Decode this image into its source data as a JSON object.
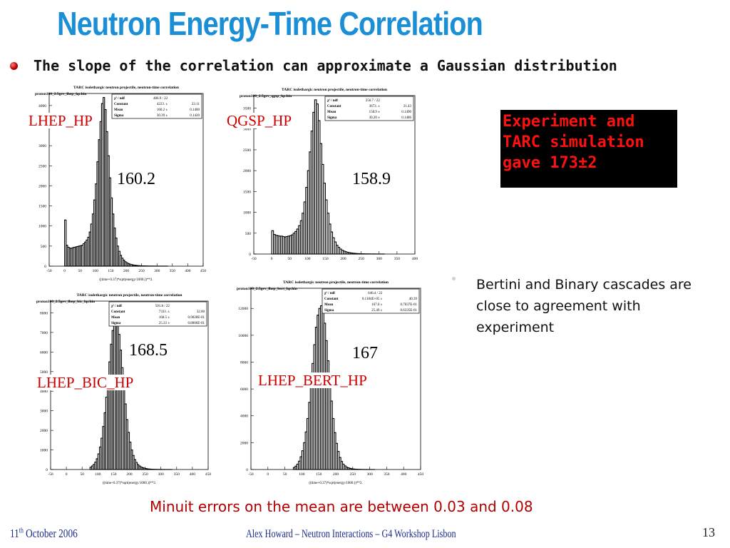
{
  "slide": {
    "title": "Neutron Energy-Time Correlation",
    "subtitle": "The slope of the correlation can approximate a Gaussian distribution",
    "experiment_box": [
      "Experiment and",
      "TARC simulation",
      "gave 173±2"
    ],
    "bertini_note": "Bertini and Binary cascades are close to agreement with experiment",
    "minuit_note": "Minuit errors on the mean are between 0.03 and 0.08",
    "date_day": "11",
    "date_suffix": "th",
    "date_rest": " October 2006",
    "footer": "Alex Howard – Neutron Interactions – G4 Workshop Lisbon",
    "page_number": "13"
  },
  "colors": {
    "title": "#1a8fd6",
    "model_label": "#cc0000",
    "experiment_text": "#ff1010",
    "note_red": "#b00000",
    "footer": "#1a2a8f"
  },
  "plots": [
    {
      "id": "lhep-hp",
      "model_label": "LHEP_HP",
      "big_label": "160.2",
      "plot_title": "TARC isolethargic neutron projectile, neutron-time correlation",
      "hist_name": "proton100_2.5gev_lhep_hp.hin",
      "stats": [
        [
          "χ² / ndf",
          "486.9  /   22",
          ""
        ],
        [
          "Constant",
          "4223.  ±",
          "23.11"
        ],
        [
          "Mean",
          "160.2  ±",
          "0.1400"
        ],
        [
          "Sigma",
          "30.39  ±",
          "0.1420"
        ]
      ],
      "xaxis_label": "((time+0.37)*sqrt(energy/1000.))**2."
    },
    {
      "id": "qgsp-hp",
      "model_label": "QGSP_HP",
      "big_label": "158.9",
      "plot_title": "TARC isolethargic neutron projectile, neutron-time correlation",
      "hist_name": "proton100_2.5gev_qgsp_hp.hin",
      "stats": [
        [
          "χ² / ndf",
          "256.7  /   22",
          ""
        ],
        [
          "Constant",
          "3673.  ±",
          "21.43"
        ],
        [
          "Mean",
          "158.9  ±",
          "0.1490"
        ],
        [
          "Sigma",
          "30.20  ±",
          "0.1486"
        ]
      ],
      "xaxis_label": ""
    },
    {
      "id": "lhep-bic-hp",
      "model_label": "LHEP_BIC_HP",
      "big_label": "168.5",
      "plot_title": "TARC isolethargic neutron projectile, neutron-time correlation",
      "hist_name": "proton100_2.5gev_lhep_bic_hp.hin",
      "stats": [
        [
          "χ² / ndf",
          "501.8  /   22",
          ""
        ],
        [
          "Constant",
          "7333.  ±",
          "32.00"
        ],
        [
          "Mean",
          "168.5  ±",
          "0.9028E-01"
        ],
        [
          "Sigma",
          "25.33  ±",
          "0.8006E-01"
        ]
      ],
      "xaxis_label": "((time+0.37)*sqrt(energy/1000.))**2."
    },
    {
      "id": "lhep-bert-hp",
      "model_label": "LHEP_BERT_HP",
      "big_label": "167",
      "plot_title": "TARC isolethargic neutron projectile, neutron-time correlation",
      "hist_name": "proton100_2.5gev_lhep_bert_hp.hin",
      "stats": [
        [
          "χ² / ndf",
          "646.4  /   22",
          ""
        ],
        [
          "Constant",
          "0.1184E+05 ±",
          "40.39"
        ],
        [
          "Mean",
          "167.0  ±",
          "0.7037E-01"
        ],
        [
          "Sigma",
          "25.49  ±",
          "0.6335E-01"
        ]
      ],
      "xaxis_label": "((time+0.37)*sqrt(energy/1000.))**2."
    }
  ],
  "chart_data": [
    {
      "type": "bar",
      "title": "TARC isolethargic neutron projectile, neutron-time correlation",
      "xlabel": "((time+0.37)*sqrt(energy/1000.))**2.",
      "xlim": [
        -50,
        450
      ],
      "ylim": [
        0,
        4300
      ],
      "xticks": [
        -50,
        0,
        50,
        100,
        150,
        200,
        250,
        300,
        350,
        400,
        450
      ],
      "yticks": [
        0,
        500,
        1000,
        1500,
        2000,
        2500,
        3000,
        3500,
        4000
      ],
      "x": [
        0,
        5,
        10,
        15,
        20,
        25,
        30,
        35,
        40,
        45,
        50,
        55,
        60,
        65,
        70,
        75,
        80,
        85,
        90,
        95,
        100,
        105,
        110,
        115,
        120,
        125,
        130,
        135,
        140,
        145,
        150,
        155,
        160,
        165,
        170,
        175,
        180,
        185,
        190,
        195,
        200,
        205,
        210,
        215,
        220,
        225,
        230,
        235,
        240,
        245,
        250,
        255,
        260,
        265,
        270,
        275,
        280,
        285,
        290,
        295,
        300,
        305,
        310,
        315,
        320,
        325,
        330,
        335,
        340,
        345,
        350,
        355,
        360,
        365,
        370,
        375,
        380,
        385,
        390,
        395,
        400,
        405,
        410,
        415,
        420,
        425,
        430,
        435,
        440,
        445
      ],
      "values": [
        1150,
        520,
        470,
        450,
        445,
        460,
        470,
        480,
        490,
        500,
        510,
        520,
        560,
        600,
        650,
        720,
        850,
        1050,
        1300,
        1650,
        2050,
        2600,
        3150,
        3600,
        4050,
        4200,
        3900,
        3350,
        2750,
        2200,
        1700,
        1300,
        950,
        700,
        500,
        370,
        270,
        200,
        150,
        110,
        85,
        65,
        50,
        40,
        30,
        25,
        20,
        15,
        12,
        10,
        8,
        6,
        5,
        4,
        3,
        3,
        2,
        2,
        2,
        1,
        1,
        1,
        1,
        1,
        1,
        1,
        1,
        0,
        0,
        0,
        0,
        0,
        0,
        0,
        0,
        0,
        0,
        0,
        0,
        0,
        0,
        0,
        0,
        0,
        0,
        0,
        0,
        0,
        0,
        0
      ]
    },
    {
      "type": "bar",
      "title": "TARC isolethargic neutron projectile, neutron-time correlation",
      "xlabel": "",
      "xlim": [
        -50,
        400
      ],
      "ylim": [
        0,
        3800
      ],
      "xticks": [
        -50,
        0,
        50,
        100,
        150,
        200,
        250,
        300,
        350,
        400
      ],
      "yticks": [
        0,
        500,
        1000,
        1500,
        2000,
        2500,
        3000,
        3500
      ],
      "x": [
        0,
        5,
        10,
        15,
        20,
        25,
        30,
        35,
        40,
        45,
        50,
        55,
        60,
        65,
        70,
        75,
        80,
        85,
        90,
        95,
        100,
        105,
        110,
        115,
        120,
        125,
        130,
        135,
        140,
        145,
        150,
        155,
        160,
        165,
        170,
        175,
        180,
        185,
        190,
        195,
        200,
        205,
        210,
        215,
        220,
        225,
        230,
        235,
        240,
        245,
        250,
        255,
        260,
        265,
        270,
        275,
        280,
        285,
        290,
        295,
        300,
        305,
        310,
        315,
        320,
        325,
        330,
        335,
        340,
        345,
        350,
        355,
        360,
        365,
        370,
        375,
        380,
        385,
        390,
        395
      ],
      "values": [
        560,
        470,
        450,
        440,
        430,
        430,
        420,
        410,
        420,
        430,
        440,
        460,
        500,
        540,
        600,
        680,
        800,
        980,
        1250,
        1600,
        2000,
        2450,
        2950,
        3400,
        3700,
        3600,
        3200,
        2650,
        2150,
        1700,
        1300,
        980,
        720,
        530,
        390,
        290,
        210,
        160,
        120,
        90,
        70,
        55,
        42,
        33,
        26,
        20,
        16,
        12,
        10,
        8,
        6,
        5,
        4,
        3,
        3,
        2,
        2,
        2,
        1,
        1,
        1,
        1,
        1,
        0,
        0,
        0,
        0,
        0,
        0,
        0,
        0,
        0,
        0,
        0,
        0,
        0,
        0,
        0,
        0,
        0
      ]
    },
    {
      "type": "bar",
      "title": "TARC isolethargic neutron projectile, neutron-time correlation",
      "xlabel": "((time+0.37)*sqrt(energy/1000.))**2.",
      "xlim": [
        -50,
        450
      ],
      "ylim": [
        0,
        8600
      ],
      "xticks": [
        -50,
        0,
        50,
        100,
        150,
        200,
        250,
        300,
        350,
        400,
        450
      ],
      "yticks": [
        0,
        1000,
        2000,
        3000,
        4000,
        5000,
        6000,
        7000,
        8000
      ],
      "x": [
        75,
        80,
        85,
        90,
        95,
        100,
        105,
        110,
        115,
        120,
        125,
        130,
        135,
        140,
        145,
        150,
        155,
        160,
        165,
        170,
        175,
        180,
        185,
        190,
        195,
        200,
        205,
        210,
        215,
        220,
        225,
        230,
        235,
        240,
        245,
        250,
        255,
        260,
        265,
        270,
        275,
        280,
        285,
        290,
        295,
        300,
        305,
        310,
        315,
        320,
        325,
        330,
        335,
        340,
        345,
        350
      ],
      "values": [
        120,
        180,
        260,
        380,
        550,
        800,
        1150,
        1600,
        2200,
        2900,
        3700,
        4600,
        5500,
        6400,
        7100,
        7500,
        7700,
        7450,
        6900,
        6100,
        5200,
        4250,
        3350,
        2550,
        1900,
        1400,
        1000,
        720,
        510,
        360,
        250,
        180,
        130,
        95,
        70,
        50,
        36,
        26,
        19,
        14,
        10,
        8,
        6,
        5,
        4,
        3,
        2,
        2,
        1,
        1,
        1,
        1,
        0,
        0,
        0,
        0
      ]
    },
    {
      "type": "bar",
      "title": "TARC isolethargic neutron projectile, neutron-time correlation",
      "xlabel": "((time+0.37)*sqrt(energy/1000.))**2.",
      "xlim": [
        -50,
        450
      ],
      "ylim": [
        0,
        13500
      ],
      "xticks": [
        -50,
        0,
        50,
        100,
        150,
        200,
        250,
        300,
        350,
        400,
        450
      ],
      "yticks": [
        0,
        2000,
        4000,
        6000,
        8000,
        10000,
        12000
      ],
      "x": [
        75,
        80,
        85,
        90,
        95,
        100,
        105,
        110,
        115,
        120,
        125,
        130,
        135,
        140,
        145,
        150,
        155,
        160,
        165,
        170,
        175,
        180,
        185,
        190,
        195,
        200,
        205,
        210,
        215,
        220,
        225,
        230,
        235,
        240,
        245,
        250,
        255,
        260,
        265,
        270,
        275,
        280,
        285,
        290,
        295,
        300,
        305,
        310,
        315,
        320
      ],
      "values": [
        150,
        250,
        400,
        620,
        950,
        1400,
        2000,
        2800,
        3800,
        5000,
        6400,
        7900,
        9300,
        10600,
        11500,
        12000,
        12200,
        11800,
        10900,
        9600,
        8100,
        6600,
        5100,
        3800,
        2750,
        1950,
        1350,
        900,
        600,
        400,
        270,
        180,
        125,
        85,
        60,
        40,
        28,
        20,
        14,
        10,
        7,
        5,
        4,
        3,
        2,
        1,
        1,
        1,
        0,
        0
      ]
    }
  ]
}
